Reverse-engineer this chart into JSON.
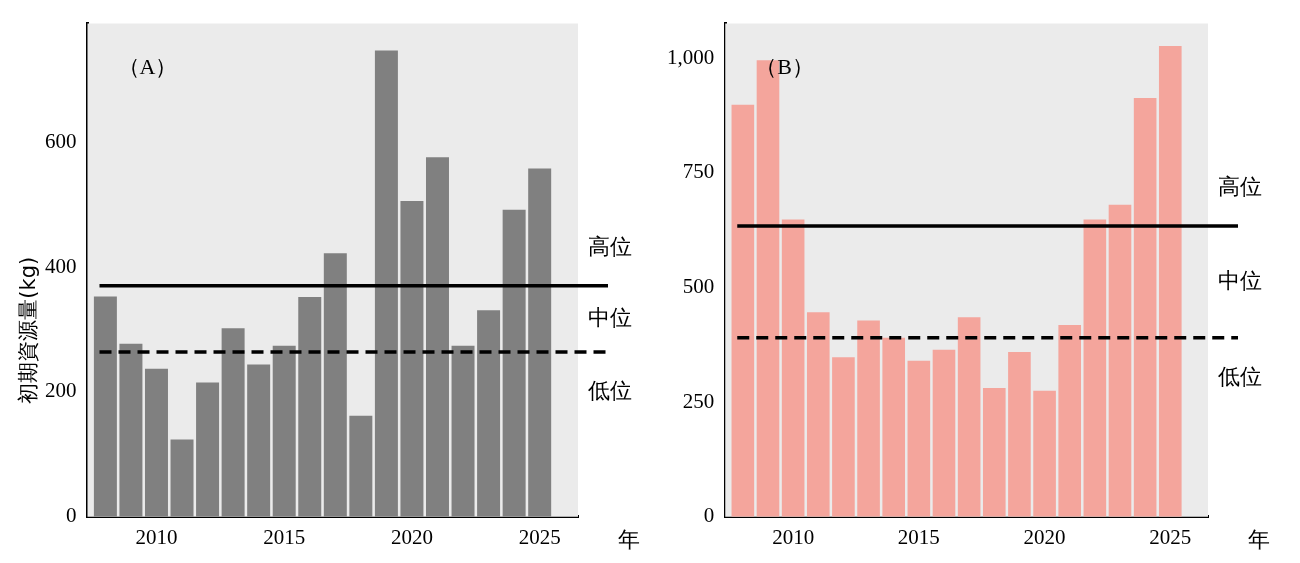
{
  "chart_data": [
    {
      "type": "bar",
      "title": "（A）",
      "xlabel": "年",
      "ylabel": "初期資源量(kg)",
      "x": [
        2008,
        2009,
        2010,
        2011,
        2012,
        2013,
        2014,
        2015,
        2016,
        2017,
        2018,
        2019,
        2020,
        2021,
        2022,
        2023,
        2024,
        2025
      ],
      "values": [
        353,
        277,
        237,
        124,
        215,
        302,
        244,
        274,
        352,
        422,
        162,
        747,
        506,
        576,
        274,
        331,
        492,
        558
      ],
      "color": "#808080",
      "xlim": [
        2007.3,
        2026.5
      ],
      "xticks": [
        2010,
        2015,
        2020,
        2025
      ],
      "ylim": [
        0,
        790
      ],
      "yticks": [
        0,
        200,
        400,
        600
      ],
      "grid": false,
      "ref_lines": [
        {
          "axis": "y",
          "value": 370,
          "color": "#000000",
          "line_style": "solid"
        },
        {
          "axis": "y",
          "value": 264,
          "color": "#000000",
          "line_style": "dashed"
        }
      ],
      "annotations": [
        "高位",
        "中位",
        "低位"
      ]
    },
    {
      "type": "bar",
      "title": "（B）",
      "xlabel": "年",
      "x": [
        2008,
        2009,
        2010,
        2011,
        2012,
        2013,
        2014,
        2015,
        2016,
        2017,
        2018,
        2019,
        2020,
        2021,
        2022,
        2023,
        2024,
        2025
      ],
      "values": [
        898,
        995,
        648,
        446,
        348,
        428,
        390,
        340,
        364,
        435,
        281,
        359,
        275,
        418,
        648,
        680,
        913,
        1026
      ],
      "color": "#f4a59c",
      "xlim": [
        2007.3,
        2026.5
      ],
      "xticks": [
        2010,
        2015,
        2020,
        2025
      ],
      "ylim": [
        0,
        1075
      ],
      "yticks": [
        0,
        250,
        500,
        750,
        {
          "value": 1000,
          "label": "1,000"
        }
      ],
      "grid": false,
      "ref_lines": [
        {
          "axis": "y",
          "value": 634,
          "color": "#000000",
          "line_style": "solid"
        },
        {
          "axis": "y",
          "value": 390,
          "color": "#000000",
          "line_style": "dashed"
        }
      ],
      "annotations": [
        "高位",
        "中位",
        "低位"
      ]
    }
  ]
}
